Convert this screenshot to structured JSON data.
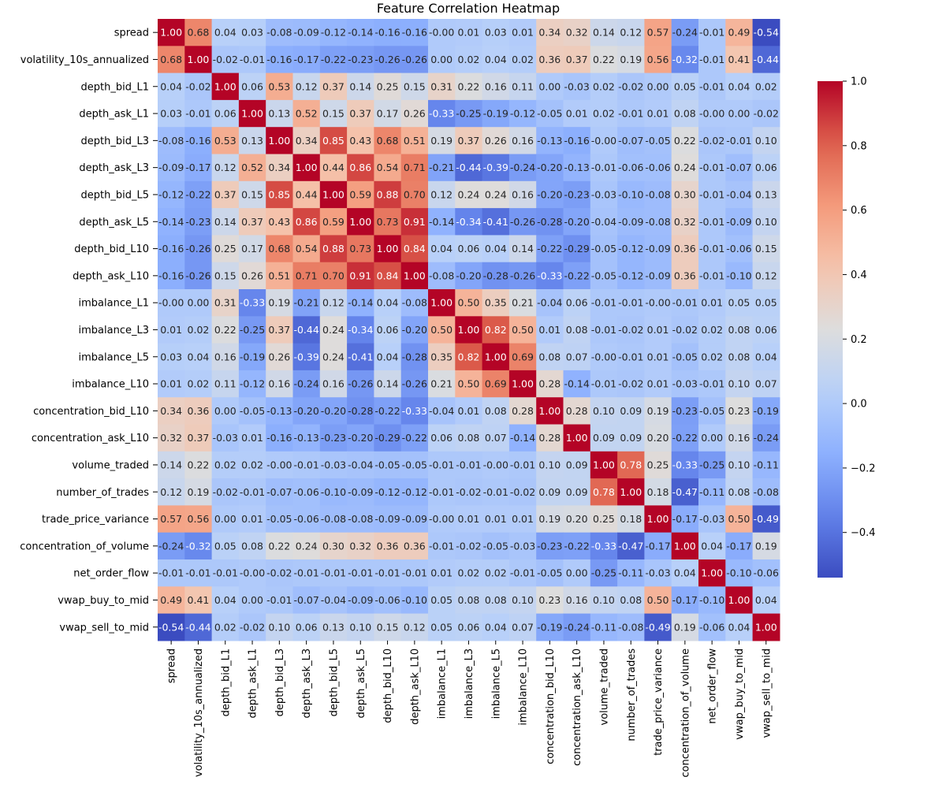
{
  "chart_data": {
    "type": "heatmap",
    "title": "Feature Correlation Heatmap",
    "colormap": "coolwarm",
    "vmin": -0.54,
    "vmax": 1.0,
    "labels": [
      "spread",
      "volatility_10s_annualized",
      "depth_bid_L1",
      "depth_ask_L1",
      "depth_bid_L3",
      "depth_ask_L3",
      "depth_bid_L5",
      "depth_ask_L5",
      "depth_bid_L10",
      "depth_ask_L10",
      "imbalance_L1",
      "imbalance_L3",
      "imbalance_L5",
      "imbalance_L10",
      "concentration_bid_L10",
      "concentration_ask_L10",
      "volume_traded",
      "number_of_trades",
      "trade_price_variance",
      "concentration_of_volume",
      "net_order_flow",
      "vwap_buy_to_mid",
      "vwap_sell_to_mid"
    ],
    "values": [
      [
        1.0,
        0.68,
        0.04,
        0.03,
        -0.08,
        -0.09,
        -0.12,
        -0.14,
        -0.16,
        -0.16,
        -0.0,
        0.01,
        0.03,
        0.01,
        0.34,
        0.32,
        0.14,
        0.12,
        0.57,
        -0.24,
        -0.01,
        0.49,
        -0.54
      ],
      [
        0.68,
        1.0,
        -0.02,
        -0.01,
        -0.16,
        -0.17,
        -0.22,
        -0.23,
        -0.26,
        -0.26,
        0.0,
        0.02,
        0.04,
        0.02,
        0.36,
        0.37,
        0.22,
        0.19,
        0.56,
        -0.32,
        -0.01,
        0.41,
        -0.44
      ],
      [
        0.04,
        -0.02,
        1.0,
        0.06,
        0.53,
        0.12,
        0.37,
        0.14,
        0.25,
        0.15,
        0.31,
        0.22,
        0.16,
        0.11,
        0.0,
        -0.03,
        0.02,
        -0.02,
        0.0,
        0.05,
        -0.01,
        0.04,
        0.02
      ],
      [
        0.03,
        -0.01,
        0.06,
        1.0,
        0.13,
        0.52,
        0.15,
        0.37,
        0.17,
        0.26,
        -0.33,
        -0.25,
        -0.19,
        -0.12,
        -0.05,
        0.01,
        0.02,
        -0.01,
        0.01,
        0.08,
        -0.0,
        0.0,
        -0.02
      ],
      [
        -0.08,
        -0.16,
        0.53,
        0.13,
        1.0,
        0.34,
        0.85,
        0.43,
        0.68,
        0.51,
        0.19,
        0.37,
        0.26,
        0.16,
        -0.13,
        -0.16,
        -0.0,
        -0.07,
        -0.05,
        0.22,
        -0.02,
        -0.01,
        0.1
      ],
      [
        -0.09,
        -0.17,
        0.12,
        0.52,
        0.34,
        1.0,
        0.44,
        0.86,
        0.54,
        0.71,
        -0.21,
        -0.44,
        -0.39,
        -0.24,
        -0.2,
        -0.13,
        -0.01,
        -0.06,
        -0.06,
        0.24,
        -0.01,
        -0.07,
        0.06
      ],
      [
        -0.12,
        -0.22,
        0.37,
        0.15,
        0.85,
        0.44,
        1.0,
        0.59,
        0.88,
        0.7,
        0.12,
        0.24,
        0.24,
        0.16,
        -0.2,
        -0.23,
        -0.03,
        -0.1,
        -0.08,
        0.3,
        -0.01,
        -0.04,
        0.13
      ],
      [
        -0.14,
        -0.23,
        0.14,
        0.37,
        0.43,
        0.86,
        0.59,
        1.0,
        0.73,
        0.91,
        -0.14,
        -0.34,
        -0.41,
        -0.26,
        -0.28,
        -0.2,
        -0.04,
        -0.09,
        -0.08,
        0.32,
        -0.01,
        -0.09,
        0.1
      ],
      [
        -0.16,
        -0.26,
        0.25,
        0.17,
        0.68,
        0.54,
        0.88,
        0.73,
        1.0,
        0.84,
        0.04,
        0.06,
        0.04,
        0.14,
        -0.22,
        -0.29,
        -0.05,
        -0.12,
        -0.09,
        0.36,
        -0.01,
        -0.06,
        0.15
      ],
      [
        -0.16,
        -0.26,
        0.15,
        0.26,
        0.51,
        0.71,
        0.7,
        0.91,
        0.84,
        1.0,
        -0.08,
        -0.2,
        -0.28,
        -0.26,
        -0.33,
        -0.22,
        -0.05,
        -0.12,
        -0.09,
        0.36,
        -0.01,
        -0.1,
        0.12
      ],
      [
        -0.0,
        0.0,
        0.31,
        -0.33,
        0.19,
        -0.21,
        0.12,
        -0.14,
        0.04,
        -0.08,
        1.0,
        0.5,
        0.35,
        0.21,
        -0.04,
        0.06,
        -0.01,
        -0.01,
        -0.0,
        -0.01,
        0.01,
        0.05,
        0.05
      ],
      [
        0.01,
        0.02,
        0.22,
        -0.25,
        0.37,
        -0.44,
        0.24,
        -0.34,
        0.06,
        -0.2,
        0.5,
        1.0,
        0.82,
        0.5,
        0.01,
        0.08,
        -0.01,
        -0.02,
        0.01,
        -0.02,
        0.02,
        0.08,
        0.06
      ],
      [
        0.03,
        0.04,
        0.16,
        -0.19,
        0.26,
        -0.39,
        0.24,
        -0.41,
        0.04,
        -0.28,
        0.35,
        0.82,
        1.0,
        0.69,
        0.08,
        0.07,
        -0.0,
        -0.01,
        0.01,
        -0.05,
        0.02,
        0.08,
        0.04
      ],
      [
        0.01,
        0.02,
        0.11,
        -0.12,
        0.16,
        -0.24,
        0.16,
        -0.26,
        0.14,
        -0.26,
        0.21,
        0.5,
        0.69,
        1.0,
        0.28,
        -0.14,
        -0.01,
        -0.02,
        0.01,
        -0.03,
        -0.01,
        0.1,
        0.07
      ],
      [
        0.34,
        0.36,
        0.0,
        -0.05,
        -0.13,
        -0.2,
        -0.2,
        -0.28,
        -0.22,
        -0.33,
        -0.04,
        0.01,
        0.08,
        0.28,
        1.0,
        0.28,
        0.1,
        0.09,
        0.19,
        -0.23,
        -0.05,
        0.23,
        -0.19
      ],
      [
        0.32,
        0.37,
        -0.03,
        0.01,
        -0.16,
        -0.13,
        -0.23,
        -0.2,
        -0.29,
        -0.22,
        0.06,
        0.08,
        0.07,
        -0.14,
        0.28,
        1.0,
        0.09,
        0.09,
        0.2,
        -0.22,
        0.0,
        0.16,
        -0.24
      ],
      [
        0.14,
        0.22,
        0.02,
        0.02,
        -0.0,
        -0.01,
        -0.03,
        -0.04,
        -0.05,
        -0.05,
        -0.01,
        -0.01,
        -0.0,
        -0.01,
        0.1,
        0.09,
        1.0,
        0.78,
        0.25,
        -0.33,
        -0.25,
        0.1,
        -0.11
      ],
      [
        0.12,
        0.19,
        -0.02,
        -0.01,
        -0.07,
        -0.06,
        -0.1,
        -0.09,
        -0.12,
        -0.12,
        -0.01,
        -0.02,
        -0.01,
        -0.02,
        0.09,
        0.09,
        0.78,
        1.0,
        0.18,
        -0.47,
        -0.11,
        0.08,
        -0.08
      ],
      [
        0.57,
        0.56,
        0.0,
        0.01,
        -0.05,
        -0.06,
        -0.08,
        -0.08,
        -0.09,
        -0.09,
        -0.0,
        0.01,
        0.01,
        0.01,
        0.19,
        0.2,
        0.25,
        0.18,
        1.0,
        -0.17,
        -0.03,
        0.5,
        -0.49
      ],
      [
        -0.24,
        -0.32,
        0.05,
        0.08,
        0.22,
        0.24,
        0.3,
        0.32,
        0.36,
        0.36,
        -0.01,
        -0.02,
        -0.05,
        -0.03,
        -0.23,
        -0.22,
        -0.33,
        -0.47,
        -0.17,
        1.0,
        0.04,
        -0.17,
        0.19
      ],
      [
        -0.01,
        -0.01,
        -0.01,
        -0.0,
        -0.02,
        -0.01,
        -0.01,
        -0.01,
        -0.01,
        -0.01,
        0.01,
        0.02,
        0.02,
        -0.01,
        -0.05,
        0.0,
        -0.25,
        -0.11,
        -0.03,
        0.04,
        1.0,
        -0.1,
        -0.06
      ],
      [
        0.49,
        0.41,
        0.04,
        0.0,
        -0.01,
        -0.07,
        -0.04,
        -0.09,
        -0.06,
        -0.1,
        0.05,
        0.08,
        0.08,
        0.1,
        0.23,
        0.16,
        0.1,
        0.08,
        0.5,
        -0.17,
        -0.1,
        1.0,
        0.04
      ],
      [
        -0.54,
        -0.44,
        0.02,
        -0.02,
        0.1,
        0.06,
        0.13,
        0.1,
        0.15,
        0.12,
        0.05,
        0.06,
        0.04,
        0.07,
        -0.19,
        -0.24,
        -0.11,
        -0.08,
        -0.49,
        0.19,
        -0.06,
        0.04,
        1.0
      ]
    ],
    "colorbar_ticks": [
      1.0,
      0.8,
      0.6,
      0.4,
      0.2,
      0.0,
      -0.2,
      -0.4
    ],
    "colorbar_tick_labels": [
      "1.0",
      "0.8",
      "0.6",
      "0.4",
      "0.2",
      "0.0",
      "−0.2",
      "−0.4"
    ]
  }
}
